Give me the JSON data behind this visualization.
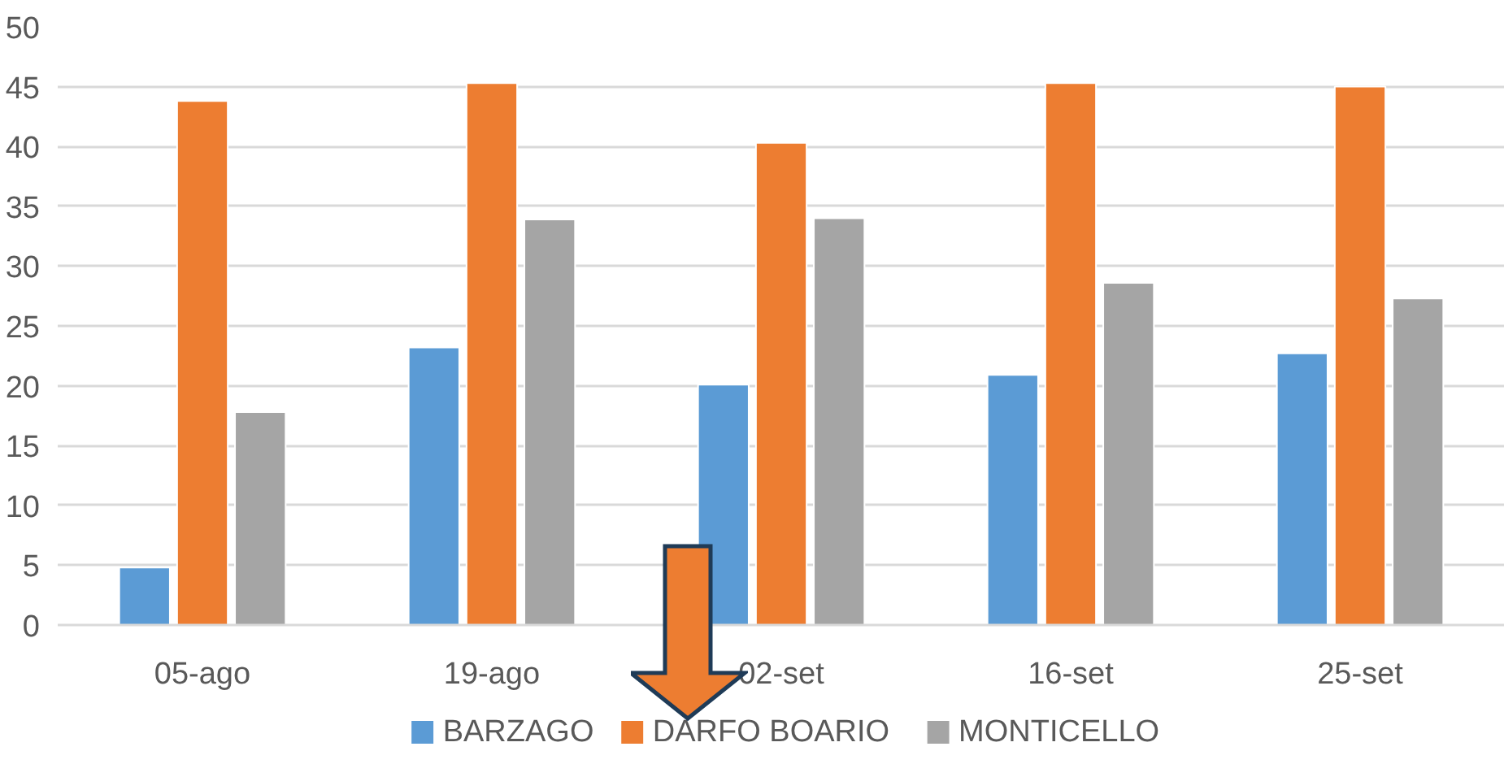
{
  "chart_data": {
    "type": "bar",
    "categories": [
      "05-ago",
      "19-ago",
      "02-set",
      "16-set",
      "25-set"
    ],
    "series": [
      {
        "name": "BARZAGO",
        "color": "#5b9bd5",
        "values": [
          4.8,
          23.2,
          20.1,
          20.9,
          22.7
        ]
      },
      {
        "name": "DARFO BOARIO",
        "color": "#ed7d31",
        "values": [
          43.8,
          45.3,
          40.3,
          45.3,
          45.0
        ]
      },
      {
        "name": "MONTICELLO",
        "color": "#a5a5a5",
        "values": [
          17.8,
          33.9,
          34.0,
          28.6,
          27.3
        ]
      }
    ],
    "ylim": [
      0,
      50
    ],
    "yticks": [
      0,
      5,
      10,
      15,
      20,
      25,
      30,
      35,
      40,
      45,
      50
    ],
    "grid": "y",
    "legend": "bottom"
  }
}
